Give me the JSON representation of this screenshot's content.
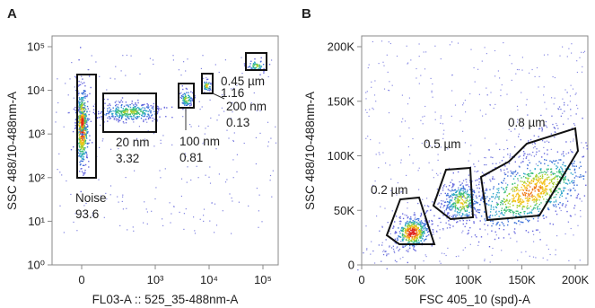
{
  "chart_data": [
    {
      "panel": "A",
      "type": "scatter",
      "xlabel": "FL03-A :: 525_35-488nm-A",
      "ylabel": "SSC 488/10-488nm-A",
      "x_scale": "biexponential",
      "y_scale": "log",
      "x_ticks": [
        "0",
        "10³",
        "10⁴",
        "10⁵"
      ],
      "y_ticks": [
        "10⁰",
        "10¹",
        "10²",
        "10³",
        "10⁴",
        "10⁵"
      ],
      "ylim": [
        1,
        100000
      ],
      "gates": [
        {
          "name": "Noise",
          "percent": "93.6",
          "x_range": [
            -30,
            30
          ],
          "y_range": [
            100,
            25000
          ]
        },
        {
          "name": "20 nm",
          "percent": "3.32",
          "x_range": [
            150,
            2200
          ],
          "y_range": [
            1500,
            9000
          ]
        },
        {
          "name": "100 nm",
          "percent": "0.81",
          "x_range": [
            2600,
            5000
          ],
          "y_range": [
            4000,
            11000
          ]
        },
        {
          "name": "200 nm",
          "percent": "0.13",
          "x_range": [
            7000,
            11000
          ],
          "y_range": [
            9000,
            20000
          ]
        },
        {
          "name": "0.45 µm",
          "percent": "1.16",
          "x_range": [
            35000,
            120000
          ],
          "y_range": [
            25000,
            60000
          ]
        }
      ]
    },
    {
      "panel": "B",
      "type": "scatter",
      "xlabel": "FSC 405_10 (spd)-A",
      "ylabel": "SSC 488/10-488nm-A",
      "x_ticks": [
        "0",
        "50K",
        "100K",
        "150K",
        "200K"
      ],
      "y_ticks": [
        "0",
        "50K",
        "100K",
        "150K",
        "200K"
      ],
      "xlim": [
        0,
        215000
      ],
      "ylim": [
        0,
        215000
      ],
      "gates": [
        {
          "name": "0.2 µm",
          "centroid": [
            47000,
            30000
          ]
        },
        {
          "name": "0.5 µm",
          "centroid": [
            92000,
            57000
          ]
        },
        {
          "name": "0.8 µm",
          "centroid": [
            160000,
            65000
          ]
        }
      ]
    }
  ]
}
